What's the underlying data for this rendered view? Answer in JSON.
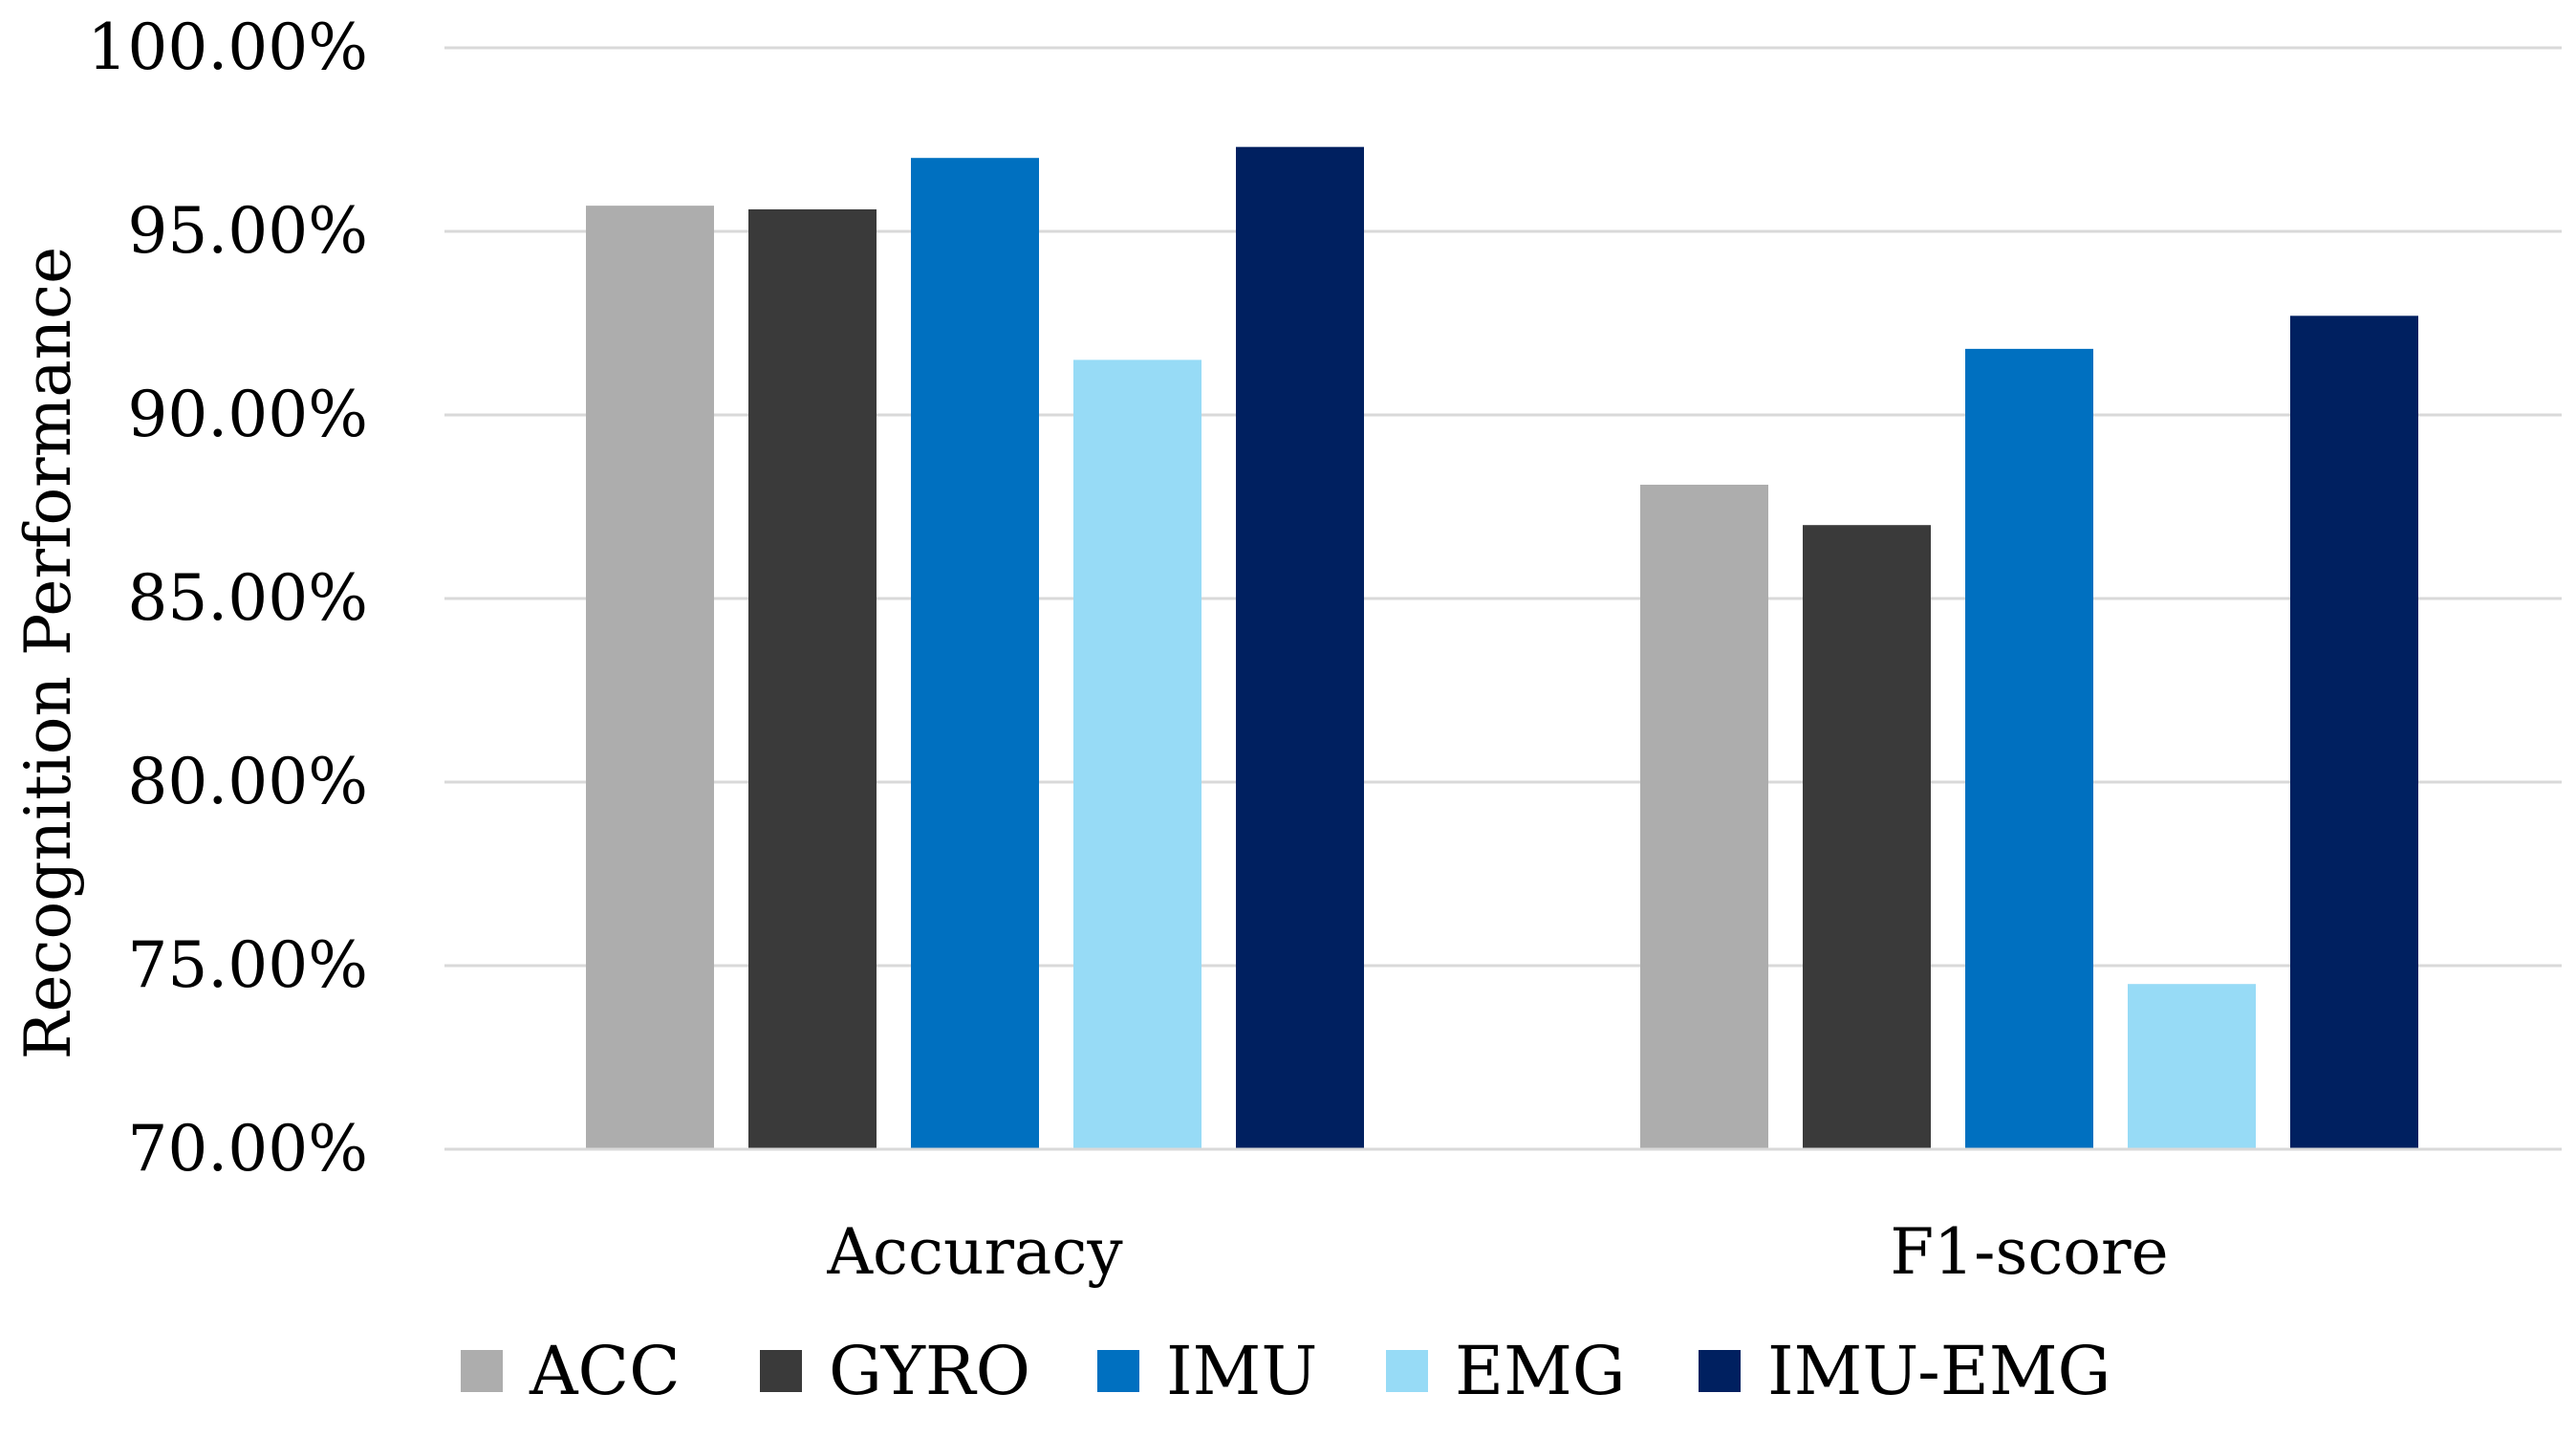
{
  "chart_data": {
    "type": "bar",
    "title": "",
    "xlabel": "",
    "ylabel": "Recognition Performance",
    "ylim": [
      70,
      100
    ],
    "yticks": [
      {
        "value": 70,
        "label": "70.00%"
      },
      {
        "value": 75,
        "label": "75.00%"
      },
      {
        "value": 80,
        "label": "80.00%"
      },
      {
        "value": 85,
        "label": "85.00%"
      },
      {
        "value": 90,
        "label": "90.00%"
      },
      {
        "value": 95,
        "label": "95.00%"
      },
      {
        "value": 100,
        "label": "100.00%"
      }
    ],
    "grid": true,
    "legend_position": "bottom",
    "categories": [
      "Accuracy",
      "F1-score"
    ],
    "series": [
      {
        "name": "ACC",
        "color": "#ADADAD",
        "values": [
          95.7,
          88.1
        ]
      },
      {
        "name": "GYRO",
        "color": "#3A3A3A",
        "values": [
          95.6,
          87.0
        ]
      },
      {
        "name": "IMU",
        "color": "#0070C0",
        "values": [
          97.0,
          91.8
        ]
      },
      {
        "name": "EMG",
        "color": "#97DBF6",
        "values": [
          91.5,
          74.5
        ]
      },
      {
        "name": "IMU-EMG",
        "color": "#002060",
        "values": [
          97.3,
          92.7
        ]
      }
    ],
    "colors": {
      "grid": "#D9D9D9",
      "text": "#000000",
      "background": "#FFFFFF"
    }
  }
}
